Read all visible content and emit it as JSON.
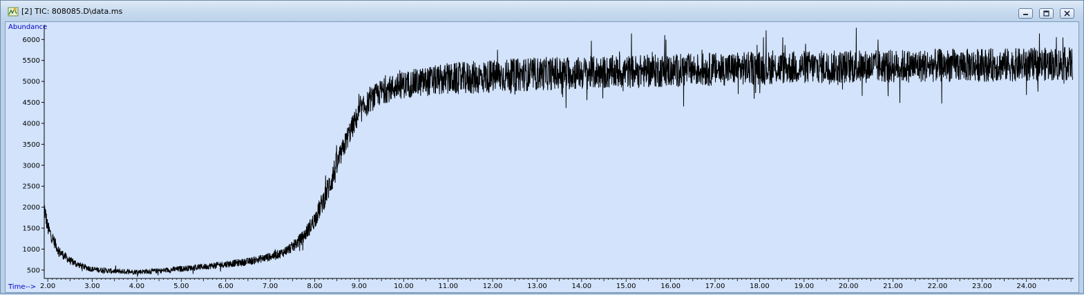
{
  "window": {
    "title": "[2] TIC: 808085.D\\data.ms",
    "controls": [
      "minimize",
      "restore",
      "close"
    ]
  },
  "chart_data": {
    "type": "line",
    "ylabel": "Abundance",
    "xlabel": "Time-->",
    "xlim": [
      1.92,
      25.06
    ],
    "ylim": [
      300,
      6350
    ],
    "x_ticks": [
      "2.00",
      "3.00",
      "4.00",
      "5.00",
      "6.00",
      "7.00",
      "8.00",
      "9.00",
      "10.00",
      "11.00",
      "12.00",
      "13.00",
      "14.00",
      "15.00",
      "16.00",
      "17.00",
      "18.00",
      "19.00",
      "20.00",
      "21.00",
      "22.00",
      "23.00",
      "24.00"
    ],
    "y_ticks": [
      "500",
      "1000",
      "1500",
      "2000",
      "2500",
      "3000",
      "3500",
      "4000",
      "4500",
      "5000",
      "5500",
      "6000"
    ],
    "series": [
      {
        "x": [
          1.92,
          2.0,
          2.25,
          2.5,
          2.75,
          3.0,
          3.5,
          4.0,
          4.5,
          5.0,
          5.5,
          6.0,
          6.5,
          7.0,
          7.25,
          7.5,
          7.75,
          8.0,
          8.25,
          8.5,
          8.75,
          9.0,
          9.25,
          9.5,
          9.75,
          10.0,
          10.5,
          11.0,
          12.0,
          13.0,
          14.0,
          15.0,
          16.0,
          17.0,
          18.0,
          19.0,
          20.0,
          21.0,
          22.0,
          23.0,
          24.0,
          25.0
        ],
        "y": [
          2000,
          1500,
          950,
          720,
          600,
          520,
          470,
          460,
          480,
          530,
          580,
          640,
          700,
          820,
          900,
          1050,
          1300,
          1700,
          2300,
          3000,
          3700,
          4250,
          4550,
          4750,
          4850,
          4920,
          5000,
          5050,
          5120,
          5180,
          5200,
          5230,
          5260,
          5290,
          5320,
          5340,
          5350,
          5360,
          5380,
          5390,
          5400,
          5420
        ],
        "noise": "high-frequency spikes roughly ±300 at start, ±400–800 after 9.00"
      }
    ],
    "grid": false
  }
}
